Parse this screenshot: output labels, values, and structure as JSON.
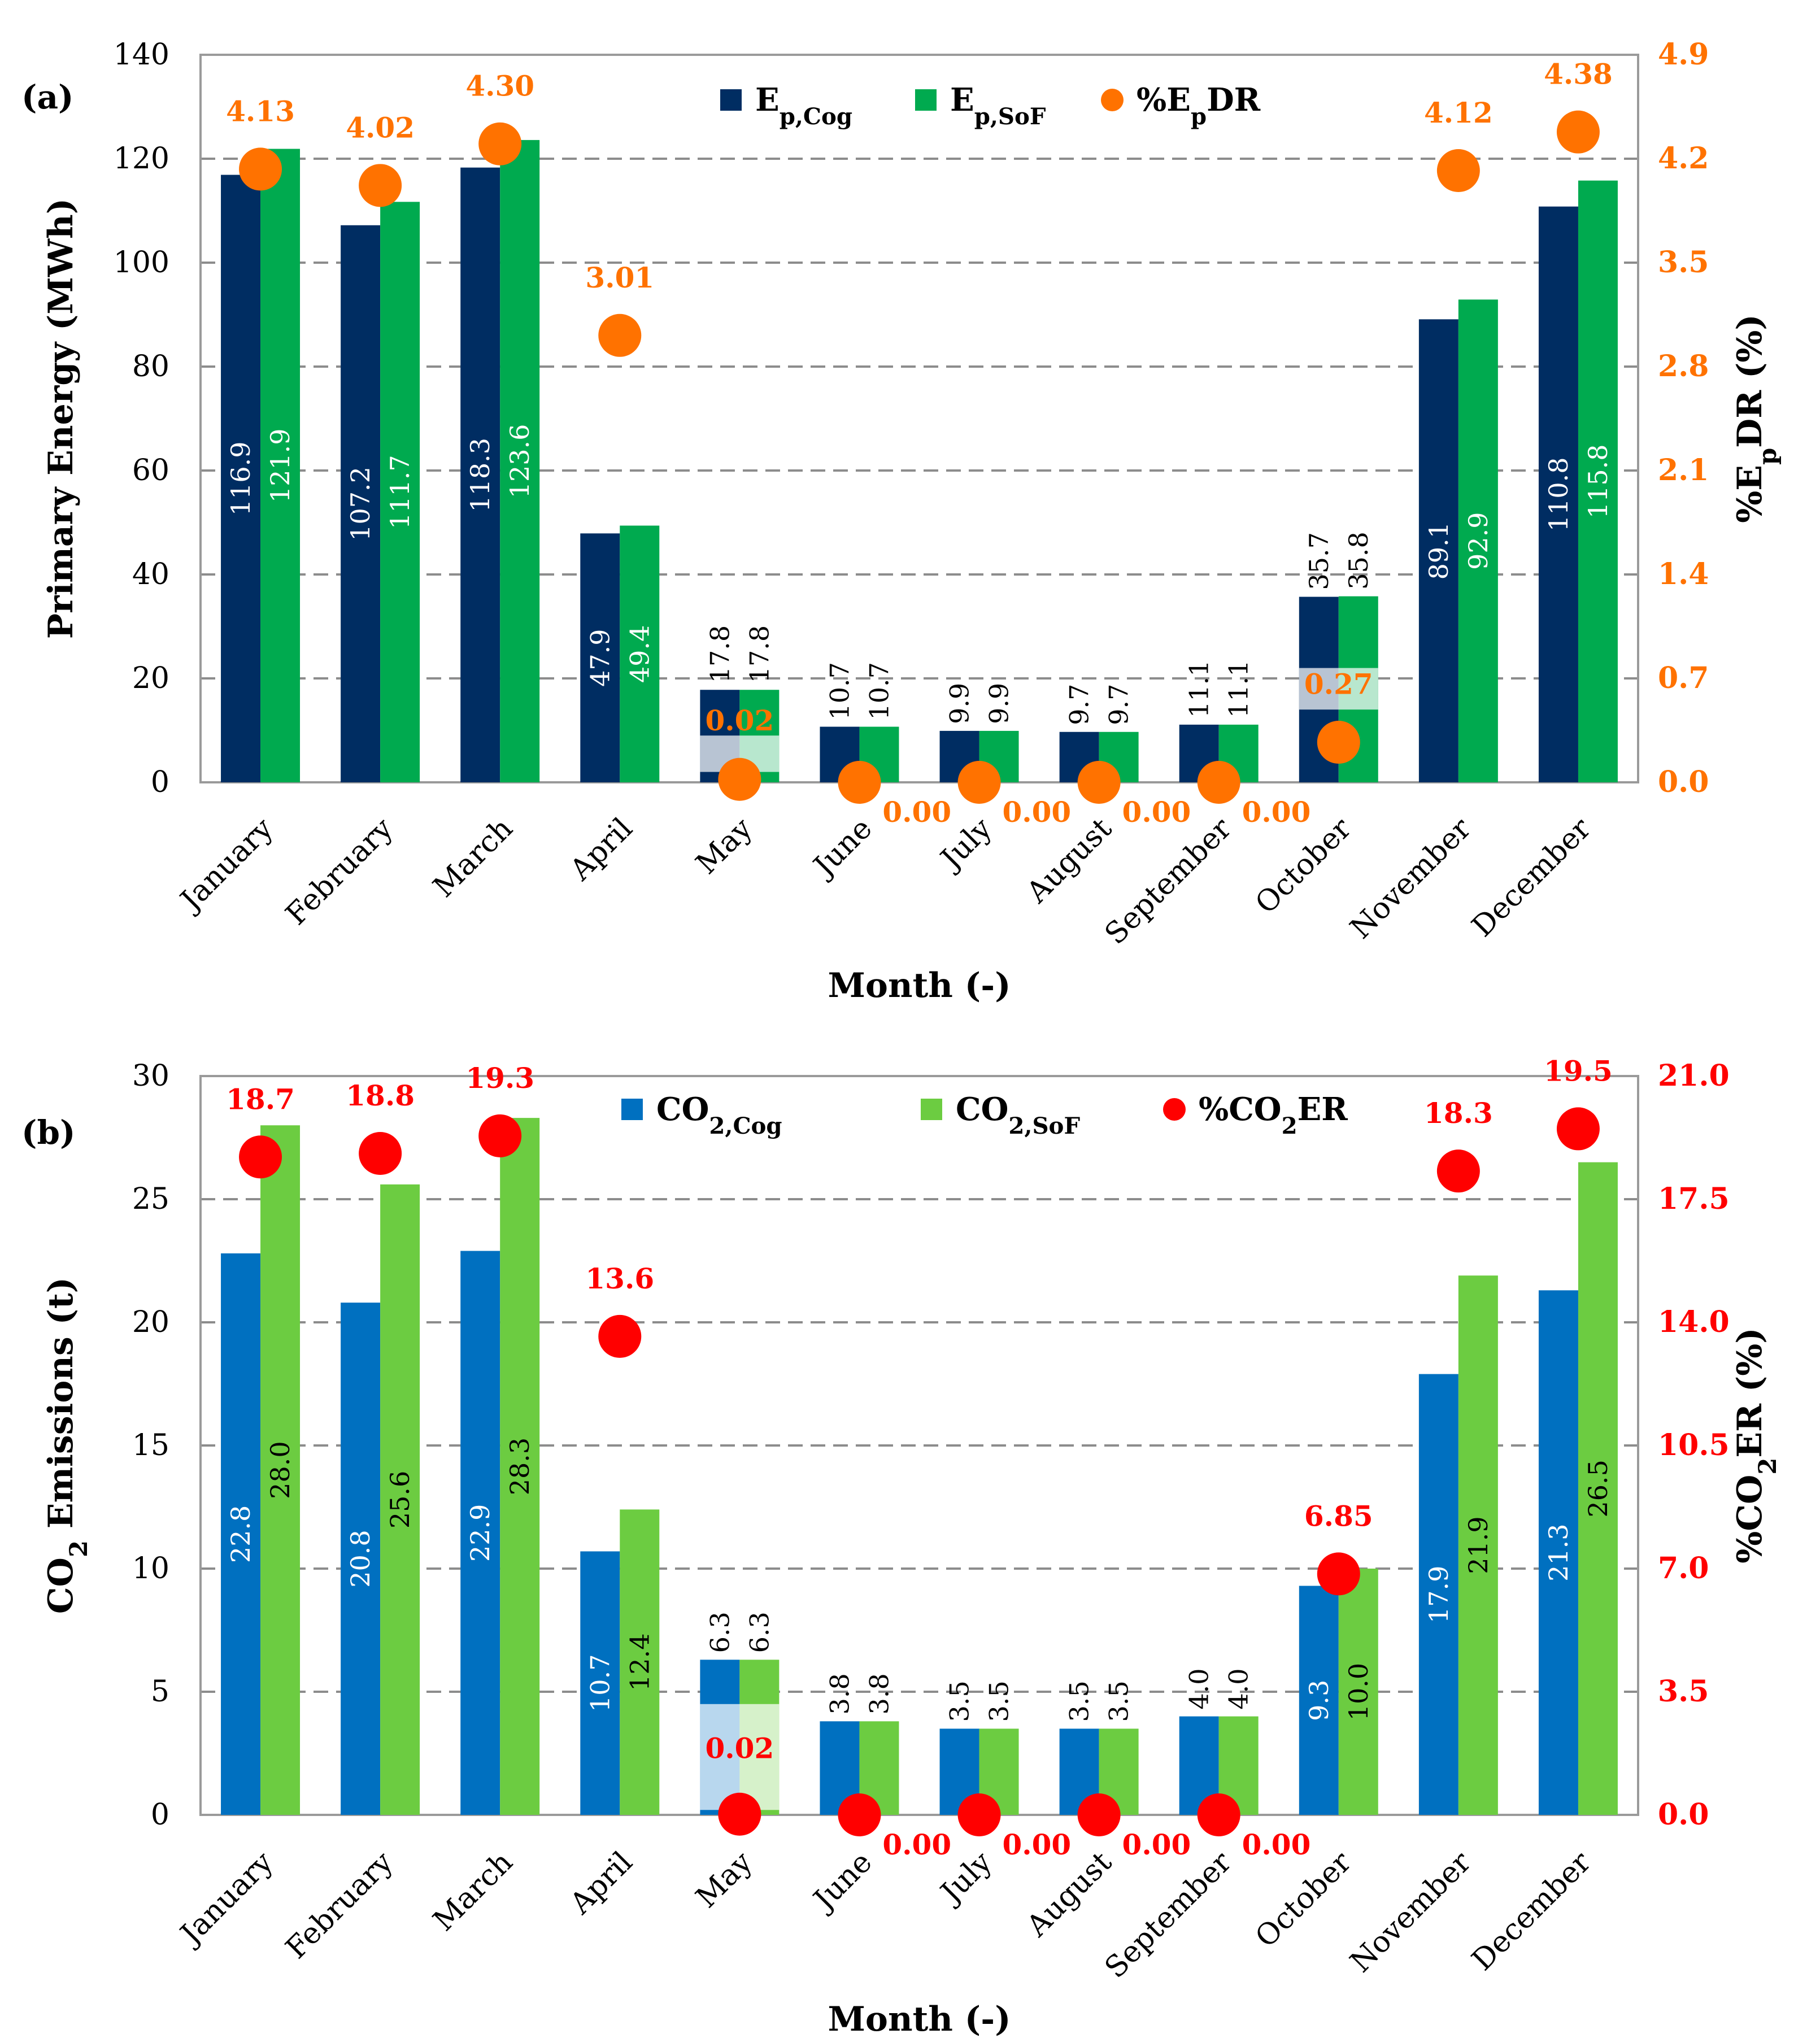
{
  "chart_data": [
    {
      "type": "bar",
      "panel_label": "(a)",
      "categories": [
        "January",
        "February",
        "March",
        "April",
        "May",
        "June",
        "July",
        "August",
        "September",
        "October",
        "November",
        "December"
      ],
      "series": [
        {
          "name": "Ep,Cog",
          "name_main": "E",
          "name_sub": "p,Cog",
          "color": "#002d62",
          "values": [
            116.9,
            107.2,
            118.3,
            47.9,
            17.8,
            10.7,
            9.9,
            9.7,
            11.1,
            35.7,
            89.1,
            110.8
          ],
          "labels": [
            "116.9",
            "107.2",
            "118.3",
            "47.9",
            "17.8",
            "10.7",
            "9.9",
            "9.7",
            "11.1",
            "35.7",
            "89.1",
            "110.8"
          ],
          "label_color": "#ffffff"
        },
        {
          "name": "Ep,SoF",
          "name_main": "E",
          "name_sub": "p,SoF",
          "color": "#00aa4f",
          "values": [
            121.9,
            111.7,
            123.6,
            49.4,
            17.8,
            10.7,
            9.9,
            9.7,
            11.1,
            35.8,
            92.9,
            115.8
          ],
          "labels": [
            "121.9",
            "111.7",
            "123.6",
            "49.4",
            "17.8",
            "10.7",
            "9.9",
            "9.7",
            "11.1",
            "35.8",
            "92.9",
            "115.8"
          ],
          "label_color": "#ffffff"
        }
      ],
      "points": {
        "name": "%EpDR",
        "name_pre": "%E",
        "name_sub": "p",
        "name_post": "DR",
        "color": "#ff7200",
        "values": [
          4.13,
          4.02,
          4.3,
          3.01,
          0.02,
          0.0,
          0.0,
          0.0,
          0.0,
          0.27,
          4.12,
          4.38
        ],
        "labels": [
          "4.13",
          "4.02",
          "4.30",
          "3.01",
          "0.02",
          "0.00",
          "0.00",
          "0.00",
          "0.00",
          "0.27",
          "4.12",
          "4.38"
        ]
      },
      "xlabel": "Month (-)",
      "ylabel": "Primary Energy (MWh)",
      "y2label_pre": "%E",
      "y2label_sub": "p",
      "y2label_post": "DR (%)",
      "ylim": [
        0,
        140
      ],
      "yticks": [
        0,
        20,
        40,
        60,
        80,
        100,
        120,
        140
      ],
      "y2lim": [
        0,
        4.9
      ],
      "y2ticks": [
        "0.0",
        "0.7",
        "1.4",
        "2.1",
        "2.8",
        "3.5",
        "4.2",
        "4.9"
      ],
      "grid": true,
      "legend": "top-center"
    },
    {
      "type": "bar",
      "panel_label": "(b)",
      "categories": [
        "January",
        "February",
        "March",
        "April",
        "May",
        "June",
        "July",
        "August",
        "September",
        "October",
        "November",
        "December"
      ],
      "series": [
        {
          "name": "CO2,Cog",
          "name_main": "CO",
          "name_sub": "2,Cog",
          "color": "#0070c0",
          "values": [
            22.8,
            20.8,
            22.9,
            10.7,
            6.3,
            3.8,
            3.5,
            3.5,
            4.0,
            9.3,
            17.9,
            21.3
          ],
          "labels": [
            "22.8",
            "20.8",
            "22.9",
            "10.7",
            "6.3",
            "3.8",
            "3.5",
            "3.5",
            "4.0",
            "9.3",
            "17.9",
            "21.3"
          ],
          "label_color": "#ffffff"
        },
        {
          "name": "CO2,SoF",
          "name_main": "CO",
          "name_sub": "2,SoF",
          "color": "#6ccc41",
          "values": [
            28.0,
            25.6,
            28.3,
            12.4,
            6.3,
            3.8,
            3.5,
            3.5,
            4.0,
            10.0,
            21.9,
            26.5
          ],
          "labels": [
            "28.0",
            "25.6",
            "28.3",
            "12.4",
            "6.3",
            "3.8",
            "3.5",
            "3.5",
            "4.0",
            "10.0",
            "21.9",
            "26.5"
          ],
          "label_color": "#000000"
        }
      ],
      "points": {
        "name": "%CO2ER",
        "name_pre": "%CO",
        "name_sub": "2",
        "name_post": "ER",
        "color": "#ff0000",
        "values": [
          18.7,
          18.8,
          19.3,
          13.6,
          0.02,
          0.0,
          0.0,
          0.0,
          0.0,
          6.85,
          18.3,
          19.5
        ],
        "labels": [
          "18.7",
          "18.8",
          "19.3",
          "13.6",
          "0.02",
          "0.00",
          "0.00",
          "0.00",
          "0.00",
          "6.85",
          "18.3",
          "19.5"
        ]
      },
      "xlabel": "Month (-)",
      "ylabel_pre": "CO",
      "ylabel_sub": "2",
      "ylabel_post": " Emissions (t)",
      "y2label_pre": "%CO",
      "y2label_sub": "2",
      "y2label_post": "ER (%)",
      "ylim": [
        0,
        30
      ],
      "yticks": [
        0,
        5,
        10,
        15,
        20,
        25,
        30
      ],
      "y2lim": [
        0,
        21.0
      ],
      "y2ticks": [
        "0.0",
        "3.5",
        "7.0",
        "10.5",
        "14.0",
        "17.5",
        "21.0"
      ],
      "grid": true,
      "legend": "top-center"
    }
  ]
}
